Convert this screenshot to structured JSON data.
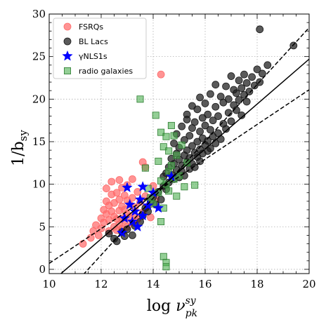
{
  "chart_data": {
    "type": "scatter",
    "xlabel": "log ν_pk^sy",
    "xlabel_main": "log ",
    "xlabel_nu": "ν",
    "xlabel_sup": "sy",
    "xlabel_sub": "pk",
    "ylabel": "1/b_sy",
    "ylabel_main": "1/b",
    "ylabel_sub": "sy",
    "xlim": [
      10,
      20
    ],
    "ylim": [
      -0.5,
      30
    ],
    "xticks": [
      10,
      12,
      14,
      16,
      18,
      20
    ],
    "yticks": [
      0,
      5,
      10,
      15,
      20,
      25,
      30
    ],
    "grid": true,
    "legend_position": "top-left",
    "legend": [
      {
        "label": "FSRQs",
        "marker": "circle",
        "color": "#ff6b6b"
      },
      {
        "label": "BL Lacs",
        "marker": "circle",
        "color": "#1a1a1a"
      },
      {
        "label": "γNLS1s",
        "marker": "star",
        "color": "#0000ff"
      },
      {
        "label": "radio galaxies",
        "marker": "square",
        "color": "#4caf50"
      }
    ],
    "fit_lines": [
      {
        "style": "solid",
        "points": [
          [
            10,
            -1.7
          ],
          [
            20,
            24.7
          ]
        ]
      },
      {
        "style": "dashed",
        "points": [
          [
            10,
            0.7
          ],
          [
            20,
            21.1
          ]
        ]
      },
      {
        "style": "dashed",
        "points": [
          [
            10,
            -5.0
          ],
          [
            20,
            28.4
          ]
        ]
      }
    ],
    "series": [
      {
        "name": "FSRQs",
        "marker": "circle",
        "color": "#ff6b6b",
        "points": [
          [
            11.3,
            3.0
          ],
          [
            11.6,
            3.7
          ],
          [
            11.7,
            4.5
          ],
          [
            11.8,
            5.2
          ],
          [
            11.9,
            4.0
          ],
          [
            12.0,
            6.0
          ],
          [
            12.0,
            4.8
          ],
          [
            12.1,
            7.0
          ],
          [
            12.1,
            5.5
          ],
          [
            12.2,
            9.5
          ],
          [
            12.2,
            8.0
          ],
          [
            12.2,
            6.5
          ],
          [
            12.3,
            4.5
          ],
          [
            12.3,
            5.8
          ],
          [
            12.3,
            7.5
          ],
          [
            12.4,
            10.3
          ],
          [
            12.4,
            8.8
          ],
          [
            12.4,
            6.8
          ],
          [
            12.5,
            5.0
          ],
          [
            12.5,
            6.2
          ],
          [
            12.5,
            7.8
          ],
          [
            12.6,
            9.0
          ],
          [
            12.6,
            4.6
          ],
          [
            12.6,
            5.9
          ],
          [
            12.7,
            10.5
          ],
          [
            12.7,
            8.2
          ],
          [
            12.7,
            6.9
          ],
          [
            12.7,
            5.3
          ],
          [
            12.8,
            9.6
          ],
          [
            12.8,
            7.4
          ],
          [
            12.8,
            6.0
          ],
          [
            12.8,
            4.8
          ],
          [
            12.9,
            8.7
          ],
          [
            12.9,
            7.0
          ],
          [
            12.9,
            5.7
          ],
          [
            13.0,
            9.9
          ],
          [
            13.0,
            8.1
          ],
          [
            13.0,
            6.5
          ],
          [
            13.0,
            5.0
          ],
          [
            13.1,
            7.6
          ],
          [
            13.1,
            6.2
          ],
          [
            13.2,
            10.6
          ],
          [
            13.2,
            8.4
          ],
          [
            13.2,
            5.5
          ],
          [
            13.3,
            7.3
          ],
          [
            13.3,
            6.3
          ],
          [
            13.4,
            9.1
          ],
          [
            13.4,
            5.9
          ],
          [
            13.5,
            7.9
          ],
          [
            13.6,
            12.6
          ],
          [
            13.6,
            6.7
          ],
          [
            13.7,
            12.0
          ],
          [
            13.7,
            8.6
          ],
          [
            13.8,
            7.4
          ],
          [
            13.9,
            6.1
          ],
          [
            14.0,
            9.8
          ],
          [
            14.1,
            8.3
          ],
          [
            14.3,
            22.9
          ]
        ]
      },
      {
        "name": "BL Lacs",
        "marker": "circle",
        "color": "#1a1a1a",
        "points": [
          [
            12.3,
            4.2
          ],
          [
            12.5,
            3.6
          ],
          [
            12.6,
            3.3
          ],
          [
            12.8,
            4.4
          ],
          [
            12.9,
            3.9
          ],
          [
            13.0,
            4.7
          ],
          [
            13.2,
            4.0
          ],
          [
            13.3,
            5.1
          ],
          [
            13.5,
            5.6
          ],
          [
            13.6,
            6.3
          ],
          [
            13.7,
            7.2
          ],
          [
            13.8,
            6.8
          ],
          [
            13.9,
            7.9
          ],
          [
            14.0,
            8.5
          ],
          [
            14.1,
            7.6
          ],
          [
            14.2,
            9.1
          ],
          [
            14.3,
            8.2
          ],
          [
            14.4,
            9.8
          ],
          [
            14.4,
            10.9
          ],
          [
            14.5,
            9.4
          ],
          [
            14.5,
            11.3
          ],
          [
            14.6,
            10.2
          ],
          [
            14.6,
            12.0
          ],
          [
            14.7,
            11.1
          ],
          [
            14.7,
            13.0
          ],
          [
            14.8,
            10.6
          ],
          [
            14.8,
            12.4
          ],
          [
            14.8,
            14.8
          ],
          [
            14.9,
            11.7
          ],
          [
            14.9,
            13.6
          ],
          [
            14.9,
            15.9
          ],
          [
            15.0,
            12.9
          ],
          [
            15.0,
            10.8
          ],
          [
            15.0,
            14.3
          ],
          [
            15.1,
            12.2
          ],
          [
            15.1,
            16.8
          ],
          [
            15.1,
            11.5
          ],
          [
            15.2,
            13.4
          ],
          [
            15.2,
            11.0
          ],
          [
            15.2,
            15.2
          ],
          [
            15.3,
            12.6
          ],
          [
            15.3,
            14.0
          ],
          [
            15.3,
            18.2
          ],
          [
            15.3,
            17.6
          ],
          [
            15.4,
            13.1
          ],
          [
            15.4,
            11.8
          ],
          [
            15.4,
            15.7
          ],
          [
            15.5,
            12.4
          ],
          [
            15.5,
            14.5
          ],
          [
            15.5,
            16.6
          ],
          [
            15.5,
            19.2
          ],
          [
            15.6,
            13.7
          ],
          [
            15.6,
            12.0
          ],
          [
            15.6,
            17.3
          ],
          [
            15.7,
            15.0
          ],
          [
            15.7,
            13.2
          ],
          [
            15.7,
            18.8
          ],
          [
            15.8,
            14.1
          ],
          [
            15.8,
            16.2
          ],
          [
            15.8,
            12.7
          ],
          [
            15.8,
            20.2
          ],
          [
            15.9,
            15.4
          ],
          [
            15.9,
            13.6
          ],
          [
            15.9,
            17.8
          ],
          [
            16.0,
            14.6
          ],
          [
            16.0,
            16.9
          ],
          [
            16.0,
            19.5
          ],
          [
            16.1,
            15.1
          ],
          [
            16.1,
            13.9
          ],
          [
            16.1,
            18.2
          ],
          [
            16.2,
            16.4
          ],
          [
            16.2,
            14.2
          ],
          [
            16.2,
            20.6
          ],
          [
            16.3,
            15.6
          ],
          [
            16.3,
            17.5
          ],
          [
            16.4,
            14.8
          ],
          [
            16.4,
            19.1
          ],
          [
            16.4,
            21.7
          ],
          [
            16.5,
            16.0
          ],
          [
            16.5,
            18.0
          ],
          [
            16.6,
            15.3
          ],
          [
            16.6,
            20.3
          ],
          [
            16.7,
            17.1
          ],
          [
            16.7,
            19.6
          ],
          [
            16.8,
            16.5
          ],
          [
            16.8,
            21.5
          ],
          [
            16.9,
            18.4
          ],
          [
            16.9,
            20.0
          ],
          [
            17.0,
            17.4
          ],
          [
            17.0,
            22.7
          ],
          [
            17.1,
            19.3
          ],
          [
            17.1,
            21.1
          ],
          [
            17.2,
            18.7
          ],
          [
            17.2,
            20.7
          ],
          [
            17.3,
            19.9
          ],
          [
            17.3,
            22.2
          ],
          [
            17.4,
            18.1
          ],
          [
            17.4,
            21.3
          ],
          [
            17.5,
            20.5
          ],
          [
            17.5,
            22.9
          ],
          [
            17.6,
            19.7
          ],
          [
            17.6,
            21.9
          ],
          [
            17.7,
            20.9
          ],
          [
            17.8,
            22.6
          ],
          [
            17.9,
            21.6
          ],
          [
            18.0,
            23.5
          ],
          [
            18.1,
            22.0
          ],
          [
            18.1,
            28.2
          ],
          [
            18.2,
            23.0
          ],
          [
            18.4,
            24.0
          ],
          [
            19.4,
            26.3
          ]
        ]
      },
      {
        "name": "γNLS1s",
        "marker": "star",
        "color": "#0000ff",
        "points": [
          [
            12.8,
            4.3
          ],
          [
            12.9,
            6.0
          ],
          [
            13.0,
            9.6
          ],
          [
            13.1,
            7.6
          ],
          [
            13.2,
            5.6
          ],
          [
            13.3,
            6.8
          ],
          [
            13.4,
            5.0
          ],
          [
            13.5,
            8.2
          ],
          [
            13.6,
            6.3
          ],
          [
            13.6,
            9.7
          ],
          [
            13.8,
            7.5
          ],
          [
            14.0,
            9.0
          ],
          [
            14.2,
            7.2
          ],
          [
            14.7,
            10.9
          ]
        ]
      },
      {
        "name": "radio galaxies",
        "marker": "square",
        "color": "#4caf50",
        "points": [
          [
            13.5,
            20.0
          ],
          [
            13.7,
            11.9
          ],
          [
            13.8,
            9.5
          ],
          [
            13.9,
            8.4
          ],
          [
            14.0,
            7.7
          ],
          [
            14.1,
            18.1
          ],
          [
            14.2,
            12.7
          ],
          [
            14.2,
            9.0
          ],
          [
            14.3,
            10.4
          ],
          [
            14.3,
            16.1
          ],
          [
            14.3,
            5.6
          ],
          [
            14.4,
            14.4
          ],
          [
            14.4,
            7.2
          ],
          [
            14.4,
            1.5
          ],
          [
            14.5,
            10.0
          ],
          [
            14.5,
            15.6
          ],
          [
            14.5,
            0.8
          ],
          [
            14.5,
            0.3
          ],
          [
            14.6,
            11.5
          ],
          [
            14.6,
            13.9
          ],
          [
            14.6,
            9.2
          ],
          [
            14.7,
            12.2
          ],
          [
            14.7,
            16.9
          ],
          [
            14.8,
            15.7
          ],
          [
            14.8,
            10.6
          ],
          [
            14.9,
            13.4
          ],
          [
            14.9,
            8.6
          ],
          [
            15.0,
            11.0
          ],
          [
            15.1,
            14.6
          ],
          [
            15.2,
            9.7
          ],
          [
            15.3,
            12.5
          ],
          [
            15.6,
            9.9
          ]
        ]
      }
    ]
  }
}
